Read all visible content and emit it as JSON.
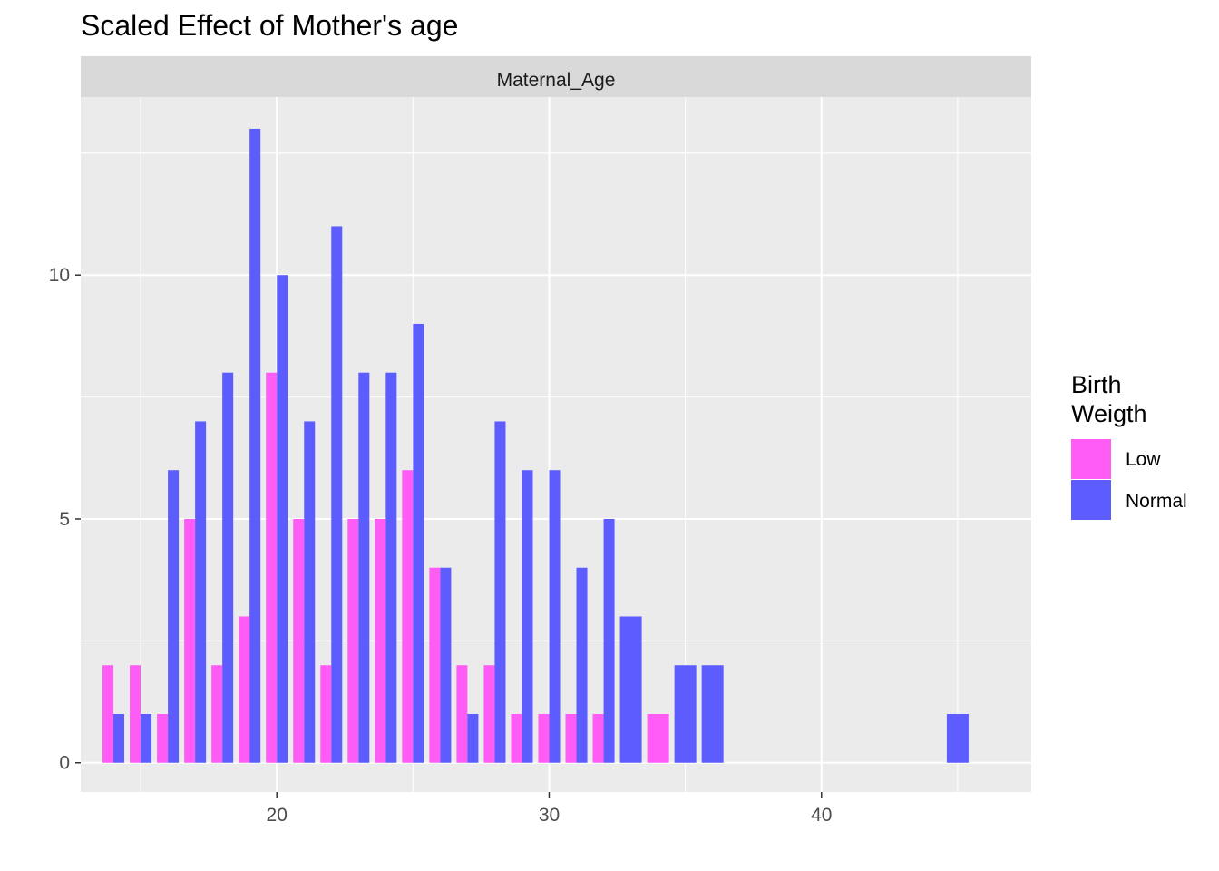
{
  "title": "Scaled Effect of Mother's age",
  "colors": {
    "panel_bg": "#EBEBEB",
    "strip_bg": "#D9D9D9",
    "grid": "#FFFFFF",
    "low": "#FF5CF6",
    "normal": "#5C5CFF"
  },
  "legend": {
    "title_lines": [
      "Birth",
      "Weigth"
    ],
    "items": [
      {
        "label": "Low",
        "color": "#FF5CF6"
      },
      {
        "label": "Normal",
        "color": "#5C5CFF"
      }
    ]
  },
  "chart_data": {
    "type": "bar",
    "facet_label": "Maternal_Age",
    "xlim": [
      12.8,
      47.7
    ],
    "ylim": [
      -0.6,
      13.65
    ],
    "x_ticks": [
      20,
      30,
      40
    ],
    "y_ticks": [
      0,
      5,
      10
    ],
    "grid": true,
    "legend_position": "right",
    "series": [
      {
        "name": "Low",
        "color": "#FF5CF6",
        "points": [
          {
            "x": 14,
            "y": 2
          },
          {
            "x": 15,
            "y": 2
          },
          {
            "x": 16,
            "y": 1
          },
          {
            "x": 17,
            "y": 5
          },
          {
            "x": 18,
            "y": 2
          },
          {
            "x": 19,
            "y": 3
          },
          {
            "x": 20,
            "y": 8
          },
          {
            "x": 21,
            "y": 5
          },
          {
            "x": 22,
            "y": 2
          },
          {
            "x": 23,
            "y": 5
          },
          {
            "x": 24,
            "y": 5
          },
          {
            "x": 25,
            "y": 6
          },
          {
            "x": 26,
            "y": 4
          },
          {
            "x": 27,
            "y": 2
          },
          {
            "x": 28,
            "y": 2
          },
          {
            "x": 29,
            "y": 1
          },
          {
            "x": 30,
            "y": 1
          },
          {
            "x": 31,
            "y": 1
          },
          {
            "x": 32,
            "y": 1
          },
          {
            "x": 34,
            "y": 1
          }
        ]
      },
      {
        "name": "Normal",
        "color": "#5C5CFF",
        "points": [
          {
            "x": 14,
            "y": 1
          },
          {
            "x": 15,
            "y": 1
          },
          {
            "x": 16,
            "y": 6
          },
          {
            "x": 17,
            "y": 7
          },
          {
            "x": 18,
            "y": 8
          },
          {
            "x": 19,
            "y": 13
          },
          {
            "x": 20,
            "y": 10
          },
          {
            "x": 21,
            "y": 7
          },
          {
            "x": 22,
            "y": 11
          },
          {
            "x": 23,
            "y": 8
          },
          {
            "x": 24,
            "y": 8
          },
          {
            "x": 25,
            "y": 9
          },
          {
            "x": 26,
            "y": 4
          },
          {
            "x": 27,
            "y": 1
          },
          {
            "x": 28,
            "y": 7
          },
          {
            "x": 29,
            "y": 6
          },
          {
            "x": 30,
            "y": 6
          },
          {
            "x": 31,
            "y": 4
          },
          {
            "x": 32,
            "y": 5
          },
          {
            "x": 33,
            "y": 3
          },
          {
            "x": 35,
            "y": 2
          },
          {
            "x": 36,
            "y": 2
          },
          {
            "x": 45,
            "y": 1
          }
        ]
      }
    ]
  }
}
